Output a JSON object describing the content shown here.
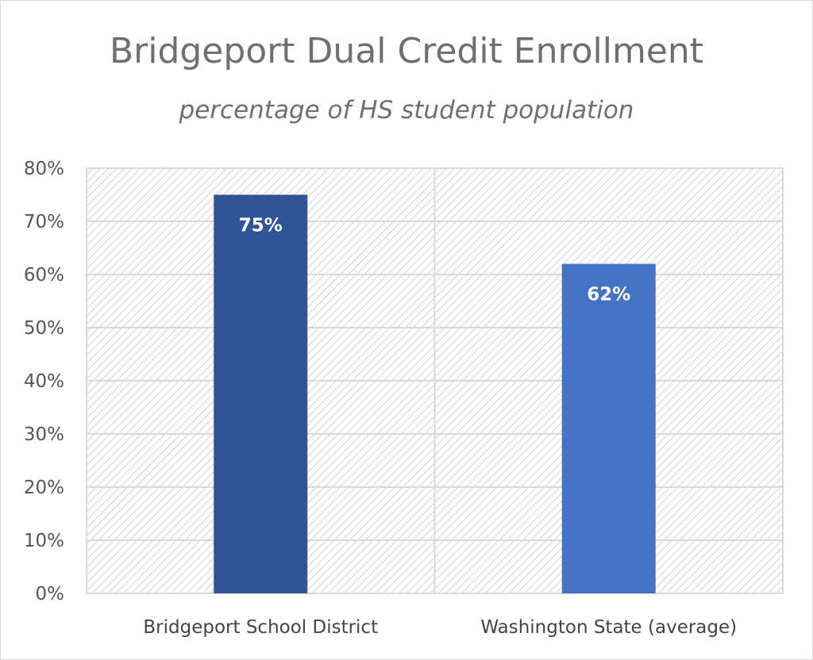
{
  "chart_data": {
    "type": "bar",
    "title": "Bridgeport Dual Credit Enrollment",
    "subtitle": "percentage of HS student population",
    "categories": [
      "Bridgeport School District",
      "Washington State (average)"
    ],
    "values": [
      75,
      62
    ],
    "data_labels": [
      "75%",
      "62%"
    ],
    "bar_colors": [
      "#2f5597",
      "#4472c4"
    ],
    "ylim": [
      0,
      80
    ],
    "yticks": [
      0,
      10,
      20,
      30,
      40,
      50,
      60,
      70,
      80
    ],
    "ytick_labels": [
      "0%",
      "10%",
      "20%",
      "30%",
      "40%",
      "50%",
      "60%",
      "70%",
      "80%"
    ],
    "xlabel": "",
    "ylabel": "",
    "grid": true,
    "legend": "none",
    "background": "diagonal-hatch"
  }
}
